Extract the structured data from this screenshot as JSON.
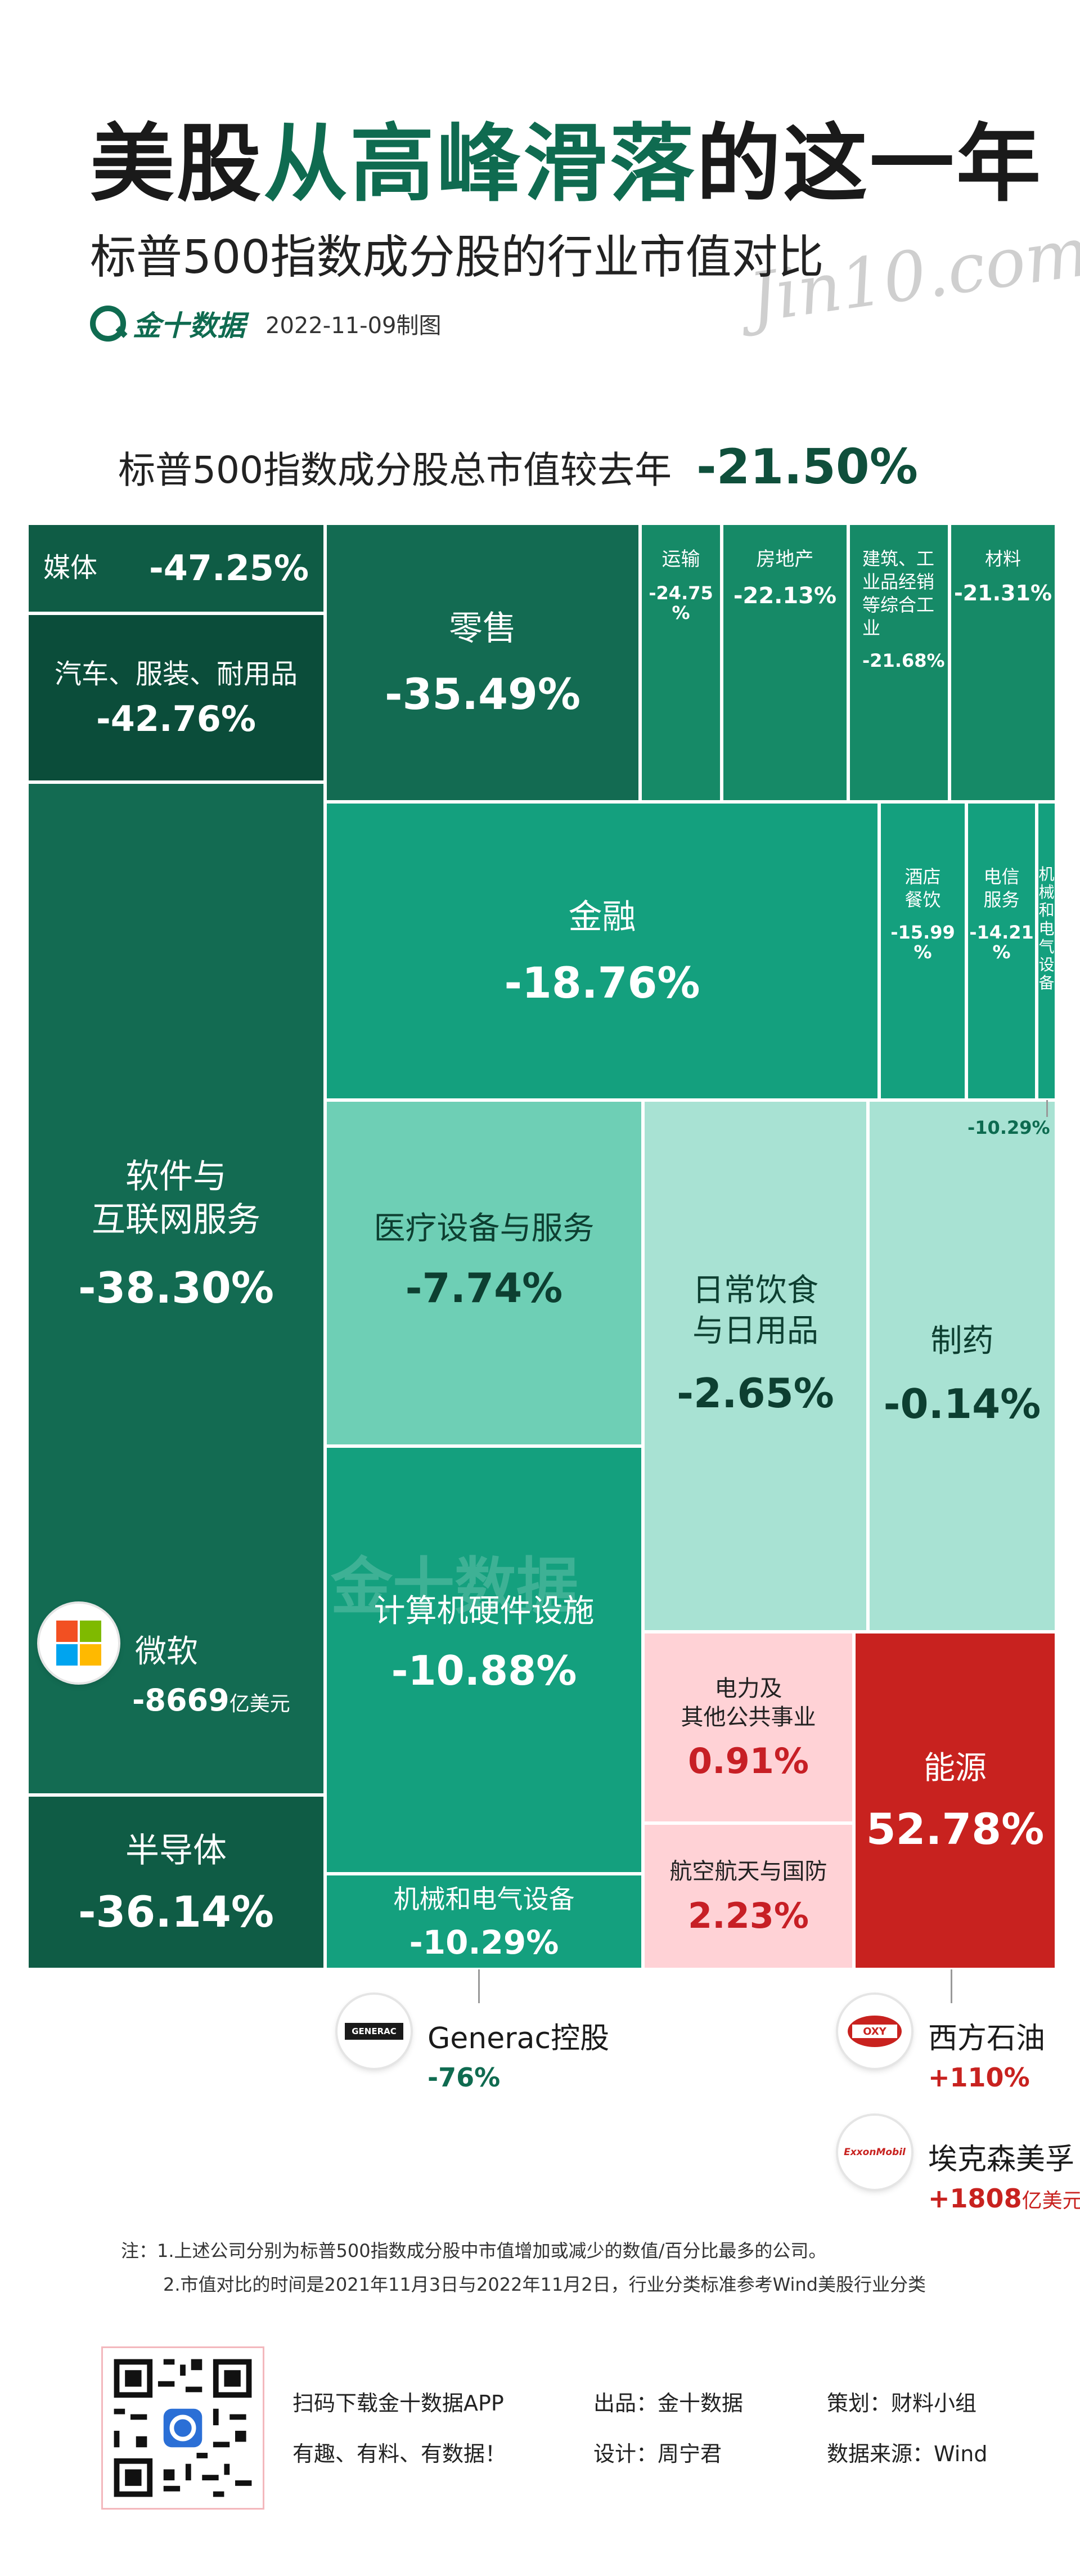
{
  "header": {
    "title_part1": "美股",
    "title_part2": "从高峰滑落",
    "title_part3": "的这一年",
    "subtitle": "标普500指数成分股的行业市值对比",
    "script_watermark": "Jin10.com",
    "brand_name": "金十数据",
    "date_note": "2022-11-09制图"
  },
  "total": {
    "label": "标普500指数成分股总市值较去年",
    "value": "-21.50%"
  },
  "chart_data": {
    "type": "treemap",
    "unit": "%",
    "title": "标普500指数成分股的行业市值对比",
    "cells": [
      {
        "name": "媒体",
        "pct": "-47.25%",
        "value": -47.25
      },
      {
        "name": "汽车、服装、耐用品",
        "pct": "-42.76%",
        "value": -42.76
      },
      {
        "name": "软件与\n互联网服务",
        "pct": "-38.30%",
        "value": -38.3
      },
      {
        "name": "半导体",
        "pct": "-36.14%",
        "value": -36.14
      },
      {
        "name": "零售",
        "pct": "-35.49%",
        "value": -35.49
      },
      {
        "name": "运输",
        "pct": "-24.75\n%",
        "value": -24.75
      },
      {
        "name": "房地产",
        "pct": "-22.13%",
        "value": -22.13
      },
      {
        "name": "建筑、工\n业品经销\n等综合工\n业",
        "pct": "-21.68%",
        "value": -21.68
      },
      {
        "name": "材料",
        "pct": "-21.31%",
        "value": -21.31
      },
      {
        "name": "金融",
        "pct": "-18.76%",
        "value": -18.76
      },
      {
        "name": "酒店\n餐饮",
        "pct": "-15.99\n%",
        "value": -15.99
      },
      {
        "name": "电信\n服务",
        "pct": "-14.21\n%",
        "value": -14.21
      },
      {
        "name": "机\n械\n和\n电\n气\n设\n备",
        "pct": "",
        "value": -10.29
      },
      {
        "name": "医疗设备与服务",
        "pct": "-7.74%",
        "value": -7.74
      },
      {
        "name": "计算机硬件设施",
        "pct": "-10.88%",
        "value": -10.88
      },
      {
        "name": "机械和电气设备",
        "pct": "-10.29%",
        "value": -10.29
      },
      {
        "name": "日常饮食\n与日用品",
        "pct": "-2.65%",
        "value": -2.65
      },
      {
        "name": "制药",
        "pct": "-0.14%",
        "value": -0.14
      },
      {
        "name": "电力及\n其他公共事业",
        "pct": "0.91%",
        "value": 0.91
      },
      {
        "name": "航空航天与国防",
        "pct": "2.23%",
        "value": 2.23
      },
      {
        "name": "能源",
        "pct": "52.78%",
        "value": 52.78
      }
    ],
    "outside_label": "-10.29%",
    "colors": {
      "very_negative": "#0b4d3a",
      "negative": "#168a67",
      "slightly_negative": "#a8e2d3",
      "slightly_positive": "#ffd2d6",
      "strongly_positive": "#c8221f"
    }
  },
  "companies": {
    "microsoft": {
      "name": "微软",
      "value": "-8669",
      "unit": "亿美元",
      "icon": "microsoft-logo-icon"
    },
    "generac": {
      "name": "Generac控股",
      "value": "-76%",
      "logo_text": "GENERAC",
      "icon": "generac-logo-icon"
    },
    "oxy": {
      "name": "西方石油",
      "value": "+110%",
      "logo_text": "OXY",
      "icon": "oxy-logo-icon"
    },
    "exxon": {
      "name": "埃克森美孚",
      "value": "+1808",
      "unit": "亿美元",
      "logo_text": "ExxonMobil",
      "icon": "exxonmobil-logo-icon"
    }
  },
  "notes": {
    "line1": "注：1.上述公司分别为标普500指数成分股中市值增加或减少的数值/百分比最多的公司。",
    "line2": "2.市值对比的时间是2021年11月3日与2022年11月2日，行业分类标准参考Wind美股行业分类"
  },
  "footer": {
    "qr_text1": "扫码下载金十数据APP",
    "qr_text2": "有趣、有料、有数据！",
    "publisher": "出品：金十数据",
    "designer": "设计：周宁君",
    "planner": "策划：财料小组",
    "data_source": "数据来源：Wind"
  },
  "watermark_text": "金十数据"
}
